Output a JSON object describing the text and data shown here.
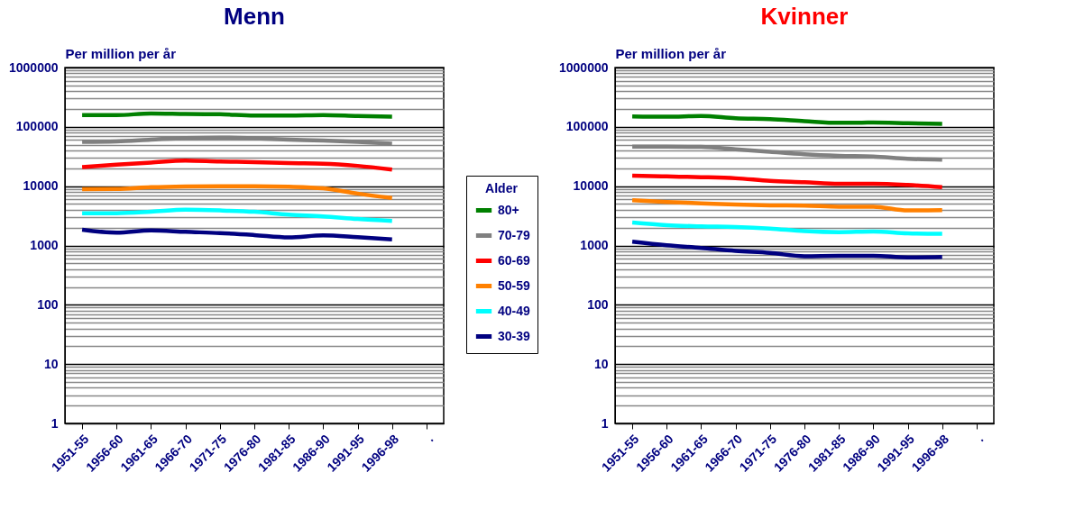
{
  "chart_data": [
    {
      "type": "line",
      "title": "Menn",
      "ylabel": "Per million per år",
      "legend_title": "Alder",
      "legend": "right",
      "grid": "y",
      "log": "y",
      "ylim": [
        1,
        1000000
      ],
      "yticks": [
        1,
        {
          "value": 2,
          "label": null
        },
        {
          "value": 3,
          "label": null
        },
        {
          "value": 4,
          "label": null
        },
        {
          "value": 5,
          "label": null
        },
        {
          "value": 6,
          "label": null
        },
        {
          "value": 7,
          "label": null
        },
        {
          "value": 8,
          "label": null
        },
        {
          "value": 9,
          "label": null
        },
        10,
        {
          "value": 20,
          "label": null
        },
        {
          "value": 30,
          "label": null
        },
        {
          "value": 40,
          "label": null
        },
        {
          "value": 50,
          "label": null
        },
        {
          "value": 60,
          "label": null
        },
        {
          "value": 70,
          "label": null
        },
        {
          "value": 80,
          "label": null
        },
        {
          "value": 90,
          "label": null
        },
        100,
        {
          "value": 200,
          "label": null
        },
        {
          "value": 300,
          "label": null
        },
        {
          "value": 400,
          "label": null
        },
        {
          "value": 500,
          "label": null
        },
        {
          "value": 600,
          "label": null
        },
        {
          "value": 700,
          "label": null
        },
        {
          "value": 800,
          "label": null
        },
        {
          "value": 900,
          "label": null
        },
        1000,
        {
          "value": 2000,
          "label": null
        },
        {
          "value": 3000,
          "label": null
        },
        {
          "value": 4000,
          "label": null
        },
        {
          "value": 5000,
          "label": null
        },
        {
          "value": 6000,
          "label": null
        },
        {
          "value": 7000,
          "label": null
        },
        {
          "value": 8000,
          "label": null
        },
        {
          "value": 9000,
          "label": null
        },
        10000,
        {
          "value": 20000,
          "label": null
        },
        {
          "value": 30000,
          "label": null
        },
        {
          "value": 40000,
          "label": null
        },
        {
          "value": 50000,
          "label": null
        },
        {
          "value": 60000,
          "label": null
        },
        {
          "value": 70000,
          "label": null
        },
        {
          "value": 80000,
          "label": null
        },
        {
          "value": 90000,
          "label": null
        },
        100000,
        {
          "value": 200000,
          "label": null
        },
        {
          "value": 300000,
          "label": null
        },
        {
          "value": 400000,
          "label": null
        },
        {
          "value": 500000,
          "label": null
        },
        {
          "value": 600000,
          "label": null
        },
        {
          "value": 700000,
          "label": null
        },
        {
          "value": 800000,
          "label": null
        },
        {
          "value": 900000,
          "label": null
        },
        1000000
      ],
      "categories": [
        "1951-55",
        "1956-60",
        "1961-65",
        "1966-70",
        "1971-75",
        "1976-80",
        "1981-85",
        "1986-90",
        "1991-95",
        "1996-98",
        "."
      ],
      "series": [
        {
          "name": "80+",
          "color": "#008000",
          "values": [
            158000,
            158000,
            168000,
            165000,
            163000,
            155000,
            155000,
            158000,
            152000,
            148000,
            null
          ]
        },
        {
          "name": "70-79",
          "color": "#808080",
          "values": [
            56000,
            57000,
            61000,
            65000,
            66000,
            64000,
            61000,
            59000,
            56000,
            52000,
            null
          ]
        },
        {
          "name": "60-69",
          "color": "#ff0000",
          "values": [
            21000,
            23000,
            25000,
            27000,
            26000,
            25500,
            24500,
            24000,
            22000,
            19000,
            null
          ]
        },
        {
          "name": "50-59",
          "color": "#ff8000",
          "values": [
            8900,
            9000,
            9600,
            9900,
            10000,
            10000,
            9800,
            9200,
            7500,
            6300,
            null
          ]
        },
        {
          "name": "40-49",
          "color": "#00ffff",
          "values": [
            3500,
            3500,
            3700,
            4000,
            3900,
            3700,
            3300,
            3100,
            2800,
            2600,
            null
          ]
        },
        {
          "name": "30-39",
          "color": "#000080",
          "values": [
            1850,
            1650,
            1800,
            1700,
            1620,
            1500,
            1370,
            1480,
            1380,
            1270,
            null
          ]
        }
      ]
    },
    {
      "type": "line",
      "title": "Kvinner",
      "ylabel": "Per million per år",
      "grid": "y",
      "log": "y",
      "ylim": [
        1,
        1000000
      ],
      "yticks": [
        1,
        {
          "value": 2,
          "label": null
        },
        {
          "value": 3,
          "label": null
        },
        {
          "value": 4,
          "label": null
        },
        {
          "value": 5,
          "label": null
        },
        {
          "value": 6,
          "label": null
        },
        {
          "value": 7,
          "label": null
        },
        {
          "value": 8,
          "label": null
        },
        {
          "value": 9,
          "label": null
        },
        10,
        {
          "value": 20,
          "label": null
        },
        {
          "value": 30,
          "label": null
        },
        {
          "value": 40,
          "label": null
        },
        {
          "value": 50,
          "label": null
        },
        {
          "value": 60,
          "label": null
        },
        {
          "value": 70,
          "label": null
        },
        {
          "value": 80,
          "label": null
        },
        {
          "value": 90,
          "label": null
        },
        100,
        {
          "value": 200,
          "label": null
        },
        {
          "value": 300,
          "label": null
        },
        {
          "value": 400,
          "label": null
        },
        {
          "value": 500,
          "label": null
        },
        {
          "value": 600,
          "label": null
        },
        {
          "value": 700,
          "label": null
        },
        {
          "value": 800,
          "label": null
        },
        {
          "value": 900,
          "label": null
        },
        1000,
        {
          "value": 2000,
          "label": null
        },
        {
          "value": 3000,
          "label": null
        },
        {
          "value": 4000,
          "label": null
        },
        {
          "value": 5000,
          "label": null
        },
        {
          "value": 6000,
          "label": null
        },
        {
          "value": 7000,
          "label": null
        },
        {
          "value": 8000,
          "label": null
        },
        {
          "value": 9000,
          "label": null
        },
        10000,
        {
          "value": 20000,
          "label": null
        },
        {
          "value": 30000,
          "label": null
        },
        {
          "value": 40000,
          "label": null
        },
        {
          "value": 50000,
          "label": null
        },
        {
          "value": 60000,
          "label": null
        },
        {
          "value": 70000,
          "label": null
        },
        {
          "value": 80000,
          "label": null
        },
        {
          "value": 90000,
          "label": null
        },
        100000,
        {
          "value": 200000,
          "label": null
        },
        {
          "value": 300000,
          "label": null
        },
        {
          "value": 400000,
          "label": null
        },
        {
          "value": 500000,
          "label": null
        },
        {
          "value": 600000,
          "label": null
        },
        {
          "value": 700000,
          "label": null
        },
        {
          "value": 800000,
          "label": null
        },
        {
          "value": 900000,
          "label": null
        },
        1000000
      ],
      "categories": [
        "1951-55",
        "1956-60",
        "1961-65",
        "1966-70",
        "1971-75",
        "1976-80",
        "1981-85",
        "1986-90",
        "1991-95",
        "1996-98",
        "."
      ],
      "series": [
        {
          "color": "#008000",
          "values": [
            150000,
            148000,
            153000,
            140000,
            135000,
            125000,
            117000,
            118000,
            115000,
            112000,
            null
          ]
        },
        {
          "color": "#808080",
          "values": [
            46500,
            46500,
            46000,
            42000,
            38000,
            34500,
            32500,
            31500,
            29000,
            28000,
            null
          ]
        },
        {
          "color": "#ff0000",
          "values": [
            15100,
            14600,
            14200,
            13600,
            12300,
            11700,
            11000,
            11000,
            10500,
            9600,
            null
          ]
        },
        {
          "color": "#ff8000",
          "values": [
            5800,
            5400,
            5150,
            4900,
            4750,
            4700,
            4500,
            4500,
            3900,
            3950,
            null
          ]
        },
        {
          "color": "#00ffff",
          "values": [
            2440,
            2200,
            2100,
            2050,
            1930,
            1750,
            1680,
            1720,
            1600,
            1570,
            null
          ]
        },
        {
          "color": "#000080",
          "values": [
            1160,
            1010,
            910,
            810,
            750,
            660,
            670,
            670,
            630,
            640,
            null
          ]
        }
      ]
    }
  ]
}
